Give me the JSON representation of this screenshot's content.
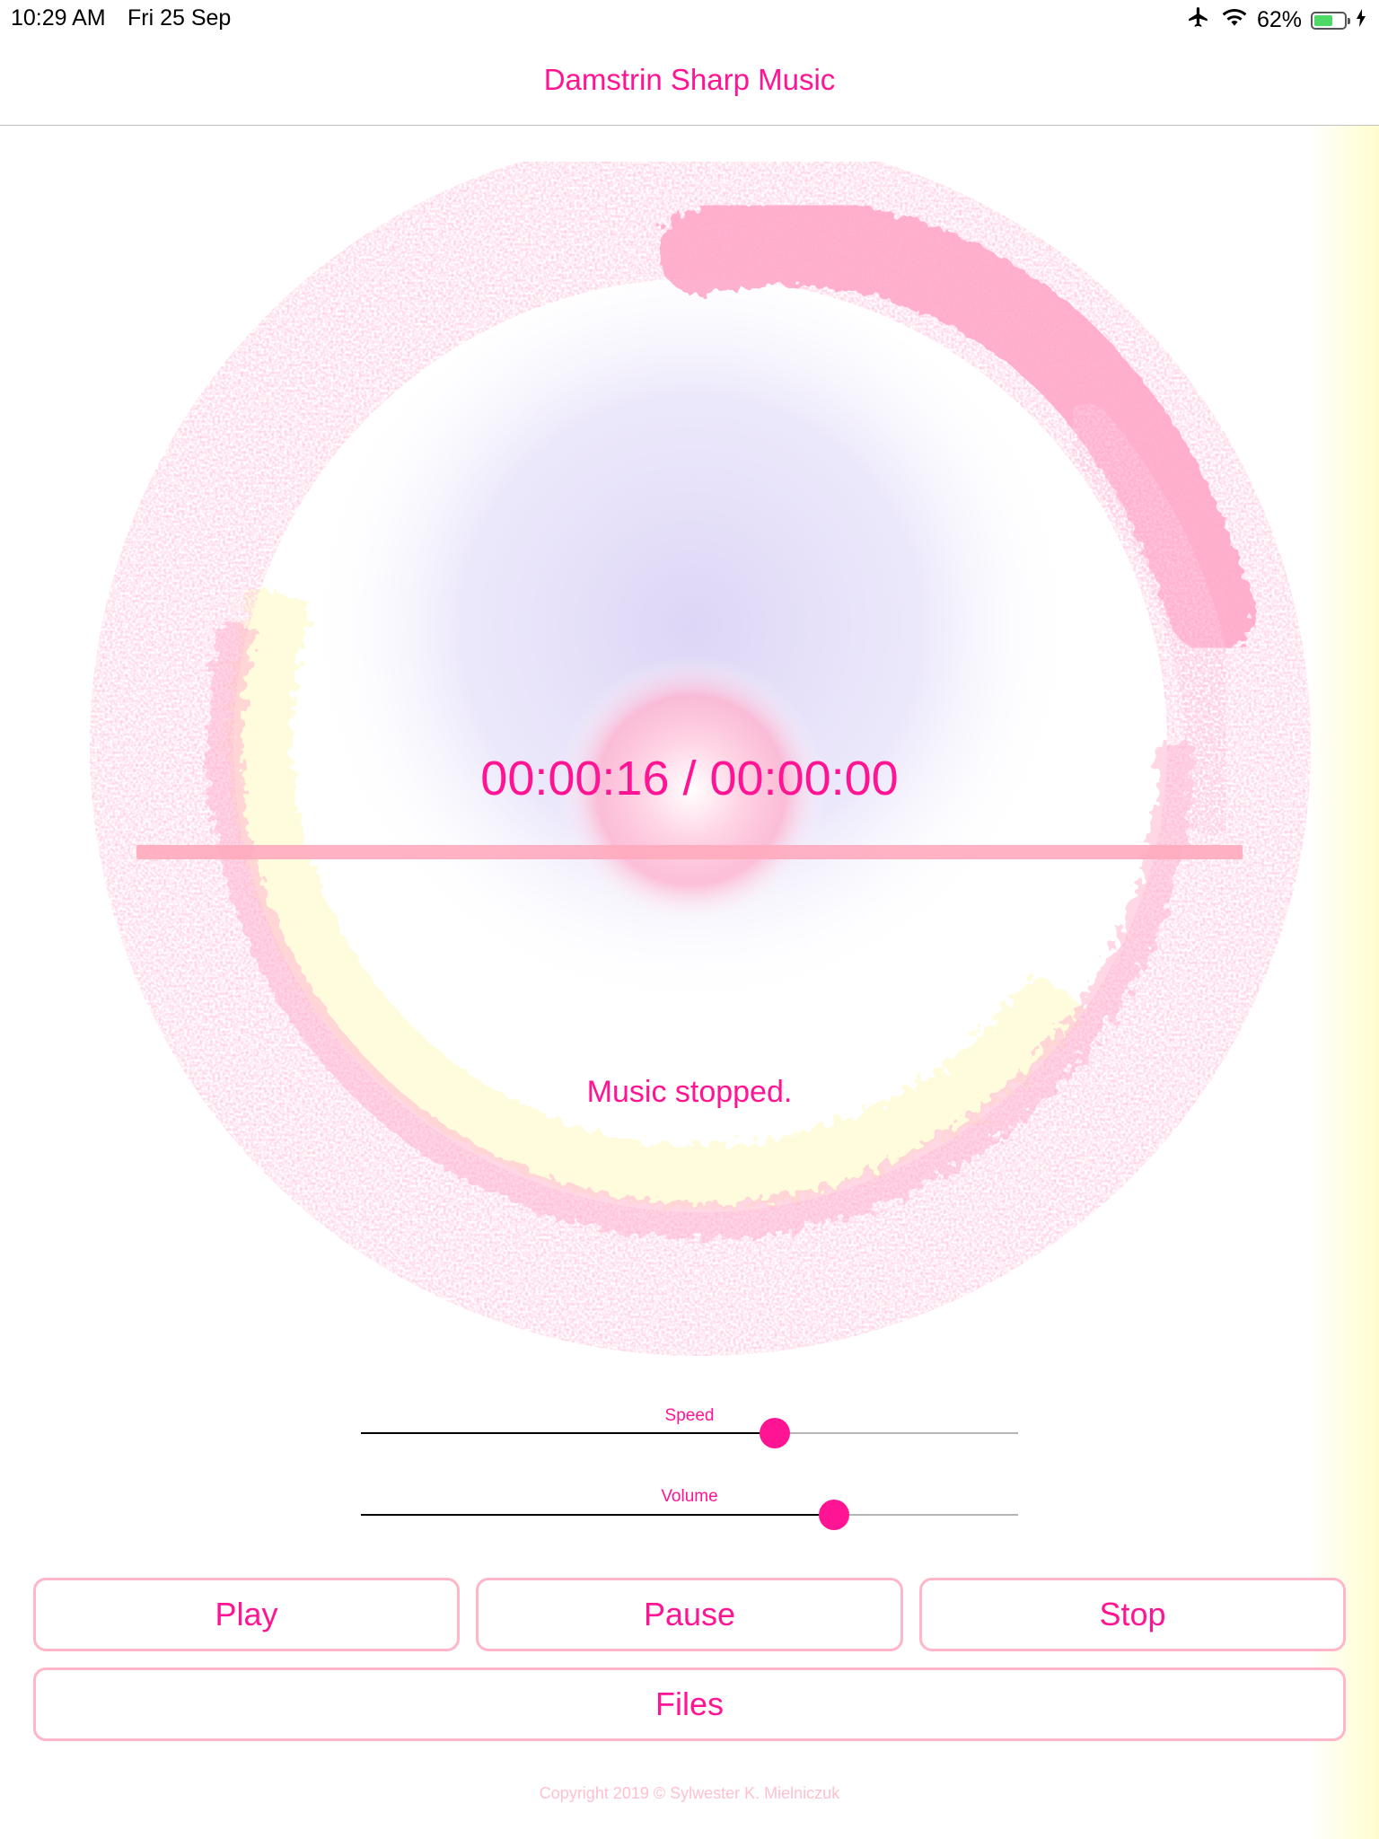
{
  "status_bar": {
    "time": "10:29 AM",
    "date": "Fri 25 Sep",
    "battery": "62%",
    "battery_level": 0.62,
    "icons": [
      "airplane-icon",
      "wifi-icon",
      "battery-icon",
      "charging-bolt-icon"
    ]
  },
  "nav": {
    "title": "Damstrin Sharp Music"
  },
  "player": {
    "time_display": "00:00:16 / 00:00:00",
    "status": "Music stopped."
  },
  "sliders": {
    "speed": {
      "label": "Speed",
      "value": 0.63
    },
    "volume": {
      "label": "Volume",
      "value": 0.72
    }
  },
  "buttons": {
    "play": "Play",
    "pause": "Pause",
    "stop": "Stop",
    "files": "Files"
  },
  "footer": {
    "copyright": "Copyright 2019 © Sylwester K. Mielniczuk"
  },
  "colors": {
    "accent": "#ff1493",
    "button_border": "#ffb6c8",
    "swirl_pink": "#ff9fc0",
    "swirl_yellow": "#fffac8",
    "center_lavender": "#e4defa"
  }
}
